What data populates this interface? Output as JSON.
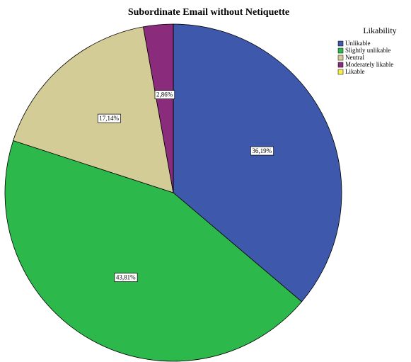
{
  "chart_data": {
    "type": "pie",
    "title": "Subordinate Email without Netiquette",
    "legend_title": "Likability",
    "categories": [
      "Unlikable",
      "Slightly unlikable",
      "Neutral",
      "Moderately likable",
      "Likable"
    ],
    "values": [
      36.19,
      43.81,
      17.14,
      2.86,
      0
    ],
    "value_labels": [
      "36,19%",
      "43,81%",
      "17,14%",
      "2,86%",
      null
    ],
    "colors": [
      "#3e58ac",
      "#2db84b",
      "#d4cc97",
      "#8b2b7b",
      "#f7f04a"
    ],
    "legend": "top-right"
  }
}
